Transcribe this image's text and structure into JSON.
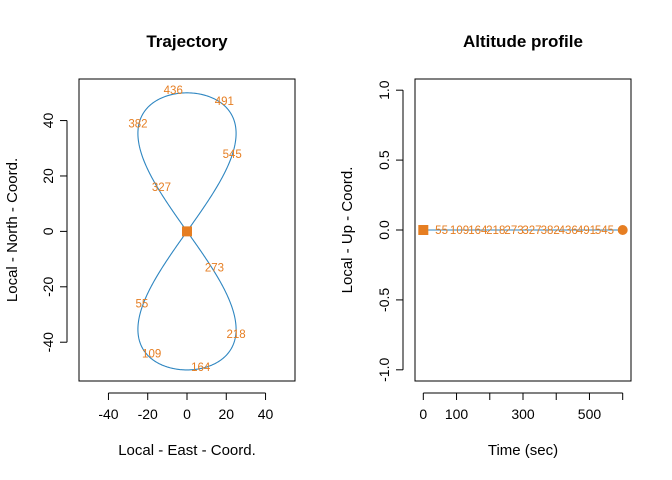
{
  "colors": {
    "path": "#2E86C1",
    "marker": "#E67E22",
    "label": "#E67E22",
    "axis": "#000000"
  },
  "chart_data": [
    {
      "type": "line",
      "title": "Trajectory",
      "xlabel": "Local - East - Coord.",
      "ylabel": "Local - North - Coord.",
      "xlim": [
        -55,
        55
      ],
      "ylim": [
        -54,
        55
      ],
      "xticks": [
        -40,
        -20,
        0,
        20,
        40
      ],
      "yticks": [
        -40,
        -20,
        0,
        20,
        40
      ],
      "curve": {
        "shape": "figure-eight",
        "x_amplitude": 25,
        "y_amplitude": 50,
        "points": 600
      },
      "start_marker": {
        "x": 0,
        "y": 0,
        "shape": "square"
      },
      "point_labels": [
        {
          "text": "55",
          "x": -23,
          "y": -26
        },
        {
          "text": "109",
          "x": -18,
          "y": -44
        },
        {
          "text": "164",
          "x": 7,
          "y": -49
        },
        {
          "text": "218",
          "x": 25,
          "y": -37
        },
        {
          "text": "273",
          "x": 14,
          "y": -13
        },
        {
          "text": "327",
          "x": -13,
          "y": 16
        },
        {
          "text": "382",
          "x": -25,
          "y": 39
        },
        {
          "text": "436",
          "x": -7,
          "y": 51
        },
        {
          "text": "491",
          "x": 19,
          "y": 47
        },
        {
          "text": "545",
          "x": 23,
          "y": 28
        }
      ]
    },
    {
      "type": "line",
      "title": "Altitude profile",
      "xlabel": "Time (sec)",
      "ylabel": "Local - Up - Coord.",
      "xlim": [
        -25,
        625
      ],
      "ylim": [
        -1.08,
        1.08
      ],
      "xticks": [
        0,
        100,
        200,
        300,
        400,
        500,
        600
      ],
      "xtick_labels": [
        "0",
        "100",
        "",
        "300",
        "",
        "500",
        ""
      ],
      "yticks": [
        -1.0,
        -0.5,
        0.0,
        0.5,
        1.0
      ],
      "ytick_labels": [
        "-1.0",
        "-0.5",
        "0.0",
        "0.5",
        "1.0"
      ],
      "series": [
        {
          "x": [
            0,
            600
          ],
          "values": [
            0,
            0
          ]
        }
      ],
      "start_marker": {
        "x": 0,
        "y": 0,
        "shape": "square"
      },
      "end_marker": {
        "x": 600,
        "y": 0,
        "shape": "circle"
      },
      "point_labels": [
        {
          "text": "55",
          "x": 55,
          "y": 0
        },
        {
          "text": "109",
          "x": 109,
          "y": 0
        },
        {
          "text": "164",
          "x": 164,
          "y": 0
        },
        {
          "text": "218",
          "x": 218,
          "y": 0
        },
        {
          "text": "273",
          "x": 273,
          "y": 0
        },
        {
          "text": "327",
          "x": 327,
          "y": 0
        },
        {
          "text": "382",
          "x": 382,
          "y": 0
        },
        {
          "text": "436",
          "x": 436,
          "y": 0
        },
        {
          "text": "491",
          "x": 491,
          "y": 0
        },
        {
          "text": "545",
          "x": 545,
          "y": 0
        }
      ]
    }
  ]
}
